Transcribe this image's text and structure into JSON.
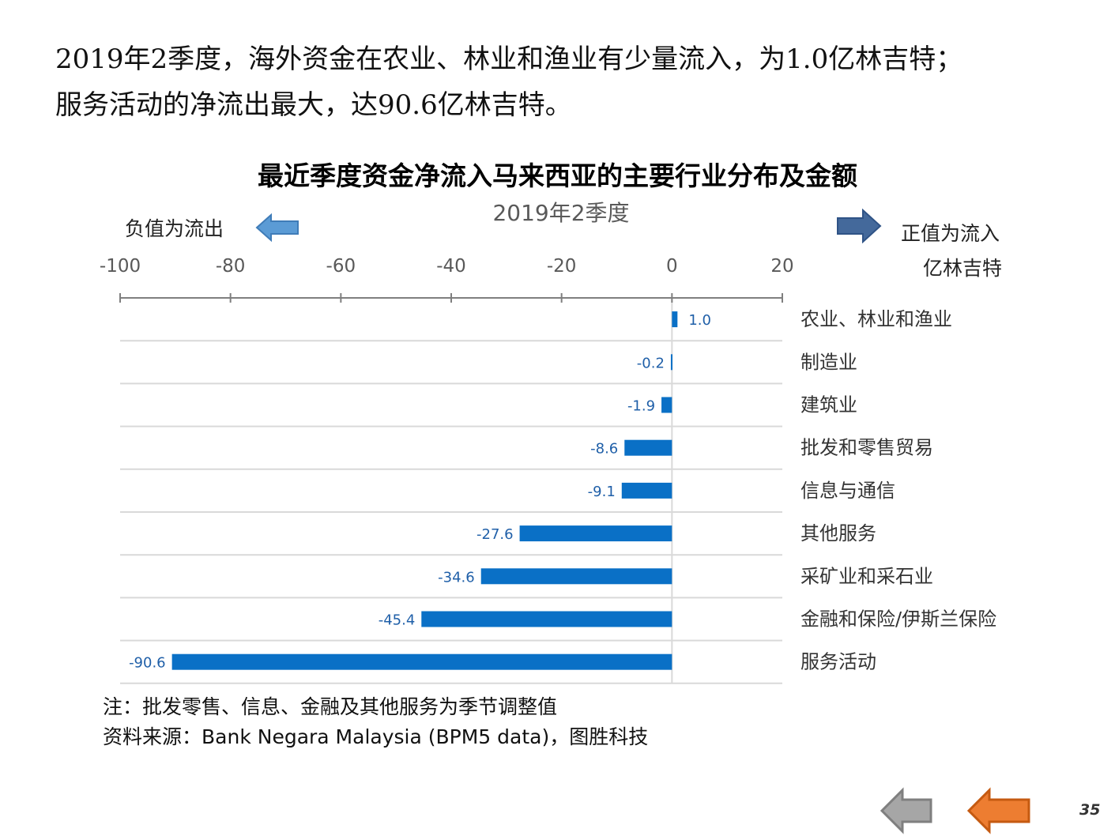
{
  "headline": {
    "line1": "2019年2季度，海外资金在农业、林业和渔业有少量流入，为1.0亿林吉特；",
    "line2": "服务活动的净流出最大，达90.6亿林吉特。"
  },
  "legend": {
    "negative_label": "负值为流出",
    "positive_label": "正值为流入",
    "unit_label": "亿林吉特"
  },
  "chart_data": {
    "type": "bar",
    "orientation": "horizontal",
    "title": "最近季度资金净流入马来西亚的主要行业分布及金额",
    "subtitle": "2019年2季度",
    "xlabel": "亿林吉特",
    "ylabel": "",
    "xlim": [
      -100,
      20
    ],
    "ticks": [
      -100,
      -80,
      -60,
      -40,
      -20,
      0,
      20
    ],
    "tick_labels": [
      "-100",
      "-80",
      "-60",
      "-40",
      "-20",
      "0",
      "20"
    ],
    "categories": [
      "农业、林业和渔业",
      "制造业",
      "建筑业",
      "批发和零售贸易",
      "信息与通信",
      "其他服务",
      "采矿业和采石业",
      "金融和保险/伊斯兰保险",
      "服务活动"
    ],
    "values": [
      1.0,
      -0.2,
      -1.9,
      -8.6,
      -9.1,
      -27.6,
      -34.6,
      -45.4,
      -90.6
    ],
    "value_labels": [
      "1.0",
      "-0.2",
      "-1.9",
      "-8.6",
      "-9.1",
      "-27.6",
      "-34.6",
      "-45.4",
      "-90.6"
    ],
    "bar_color": "#0a70c6",
    "grid": true
  },
  "notes": {
    "note": "注：批发零售、信息、金融及其他服务为季节调整值",
    "source": "资料来源：Bank Negara Malaysia  (BPM5 data)，图胜科技"
  },
  "page_number": "35",
  "colors": {
    "left_arrow": "#5b9bd5",
    "right_arrow": "#44699b",
    "nav_back": "#a6a6a6",
    "nav_forward": "#ed7d31"
  }
}
